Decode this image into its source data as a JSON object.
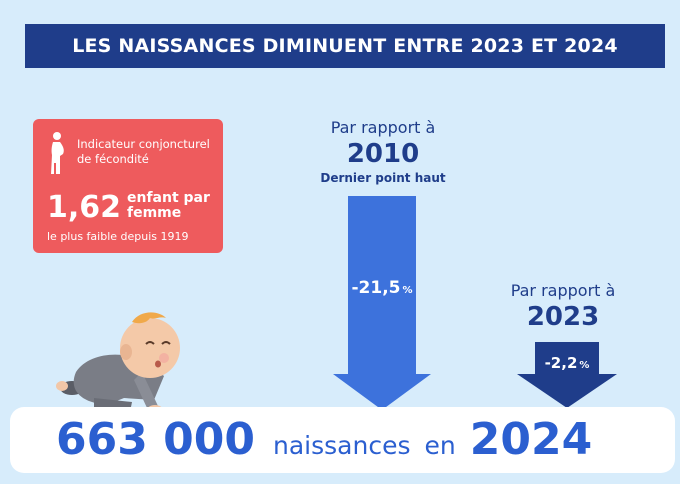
{
  "banner": {
    "title": "LES NAISSANCES DIMINUENT ENTRE 2023 ET 2024"
  },
  "fertility": {
    "label": "Indicateur conjoncturel de fécondité",
    "value": "1,62",
    "unit": "enfant par femme",
    "note": "le plus faible  depuis 1919",
    "icon": "pregnant-woman-icon"
  },
  "comparison_2010": {
    "prefix": "Par rapport à",
    "year": "2010",
    "subtitle": "Dernier point haut",
    "change": "-21,5",
    "change_unit": "%"
  },
  "comparison_2023": {
    "prefix": "Par rapport à",
    "year": "2023",
    "change": "-2,2",
    "change_unit": "%"
  },
  "births": {
    "number": "663 000",
    "word": "naissances",
    "conj": "en",
    "year": "2024"
  },
  "colors": {
    "navy": "#1f3d8a",
    "blue": "#2b5fd0",
    "red": "#ee5b5d",
    "background": "#d7ecfb"
  },
  "illustration": {
    "baby": "crawling-baby-illustration"
  }
}
